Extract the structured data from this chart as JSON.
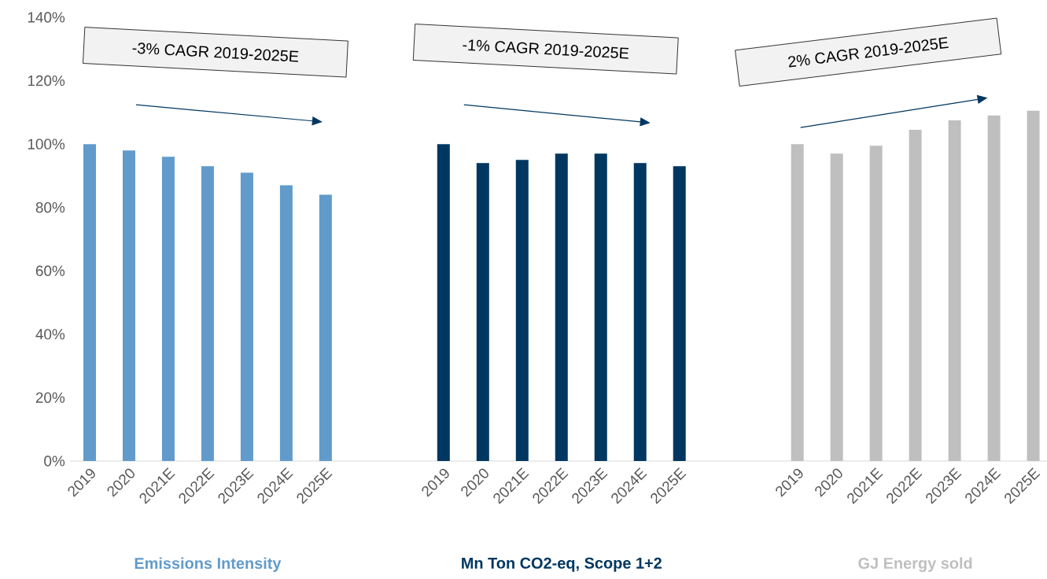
{
  "chart_data": {
    "type": "bar",
    "categories": [
      "2019",
      "2020",
      "2021E",
      "2022E",
      "2023E",
      "2024E",
      "2025E",
      null,
      null,
      "2019",
      "2020",
      "2021E",
      "2022E",
      "2023E",
      "2024E",
      "2025E",
      null,
      null,
      "2019",
      "2020",
      "2021E",
      "2022E",
      "2023E",
      "2024E",
      "2025E"
    ],
    "series": [
      {
        "name": "Emissions Intensity",
        "color": "#619bcb",
        "values": [
          100,
          98,
          96,
          93,
          91,
          87,
          84,
          null,
          null,
          null,
          null,
          null,
          null,
          null,
          null,
          null,
          null,
          null,
          null,
          null,
          null,
          null,
          null,
          null,
          null
        ]
      },
      {
        "name": "Mn Ton CO2-eq, Scope 1+2",
        "color": "#003761",
        "values": [
          null,
          null,
          null,
          null,
          null,
          null,
          null,
          null,
          null,
          100,
          94,
          95,
          97,
          97,
          94,
          93,
          null,
          null,
          null,
          null,
          null,
          null,
          null,
          null,
          null
        ]
      },
      {
        "name": "GJ Energy sold",
        "color": "#bfbfbf",
        "values": [
          null,
          null,
          null,
          null,
          null,
          null,
          null,
          null,
          null,
          null,
          null,
          null,
          null,
          null,
          null,
          null,
          null,
          null,
          100,
          97,
          99.5,
          104.5,
          107.5,
          109,
          110.5
        ]
      }
    ],
    "ylim": [
      0,
      140
    ],
    "yticks": [
      {
        "value": 0,
        "label": "0%"
      },
      {
        "value": 20,
        "label": "20%"
      },
      {
        "value": 40,
        "label": "40%"
      },
      {
        "value": 60,
        "label": "60%"
      },
      {
        "value": 80,
        "label": "80%"
      },
      {
        "value": 100,
        "label": "100%"
      },
      {
        "value": 120,
        "label": "120%"
      },
      {
        "value": 140,
        "label": "140%"
      }
    ],
    "annotations": [
      "-3% CAGR 2019-2025E",
      "-1% CAGR 2019-2025E",
      "2% CAGR 2019-2025E"
    ],
    "grid": false
  }
}
